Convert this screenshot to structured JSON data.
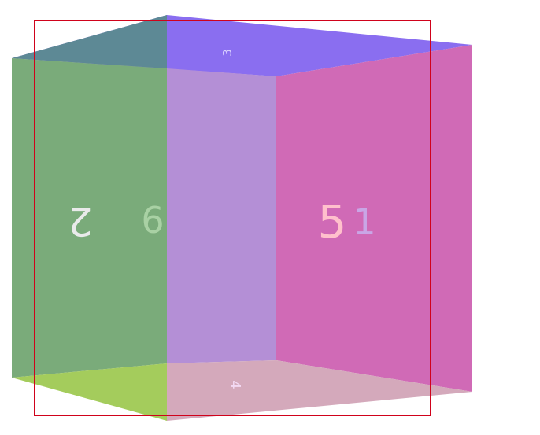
{
  "cube": {
    "faces": [
      {
        "id": "top",
        "label": "3",
        "color": "#8a6ef0"
      },
      {
        "id": "left",
        "label": "2",
        "color": "#7aab7a"
      },
      {
        "id": "front",
        "label": "6",
        "color": "#b48fd6"
      },
      {
        "id": "right",
        "label": "5",
        "color": "#d06ab6"
      },
      {
        "id": "back",
        "label": "1",
        "color": "#c9a6e6"
      },
      {
        "id": "bottom",
        "label": "4",
        "color": "#a4cc5c"
      }
    ],
    "outline_color": "#d0021b"
  }
}
